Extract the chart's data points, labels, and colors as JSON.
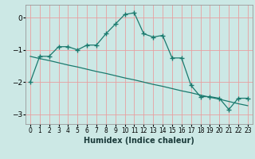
{
  "xlabel": "Humidex (Indice chaleur)",
  "ylabel": "",
  "background_color": "#cce8e5",
  "grid_color": "#e8a0a0",
  "line_color": "#1a7a6e",
  "x_data": [
    0,
    1,
    2,
    3,
    4,
    5,
    6,
    7,
    8,
    9,
    10,
    11,
    12,
    13,
    14,
    15,
    16,
    17,
    18,
    19,
    20,
    21,
    22,
    23
  ],
  "y_main": [
    -2.0,
    -1.2,
    -1.2,
    -0.9,
    -0.9,
    -1.0,
    -0.85,
    -0.85,
    -0.5,
    -0.2,
    0.1,
    0.15,
    -0.5,
    -0.6,
    -0.55,
    -1.25,
    -1.25,
    -2.1,
    -2.45,
    -2.45,
    -2.5,
    -2.85,
    -2.5,
    -2.5
  ],
  "y_linear": [
    -1.2,
    -1.27,
    -1.33,
    -1.4,
    -1.47,
    -1.53,
    -1.6,
    -1.67,
    -1.73,
    -1.8,
    -1.87,
    -1.93,
    -2.0,
    -2.07,
    -2.13,
    -2.2,
    -2.27,
    -2.33,
    -2.4,
    -2.47,
    -2.53,
    -2.6,
    -2.67,
    -2.73
  ],
  "ylim": [
    -3.3,
    0.4
  ],
  "xlim": [
    -0.5,
    23.5
  ],
  "yticks": [
    0,
    -1,
    -2,
    -3
  ],
  "xticks": [
    0,
    1,
    2,
    3,
    4,
    5,
    6,
    7,
    8,
    9,
    10,
    11,
    12,
    13,
    14,
    15,
    16,
    17,
    18,
    19,
    20,
    21,
    22,
    23
  ]
}
